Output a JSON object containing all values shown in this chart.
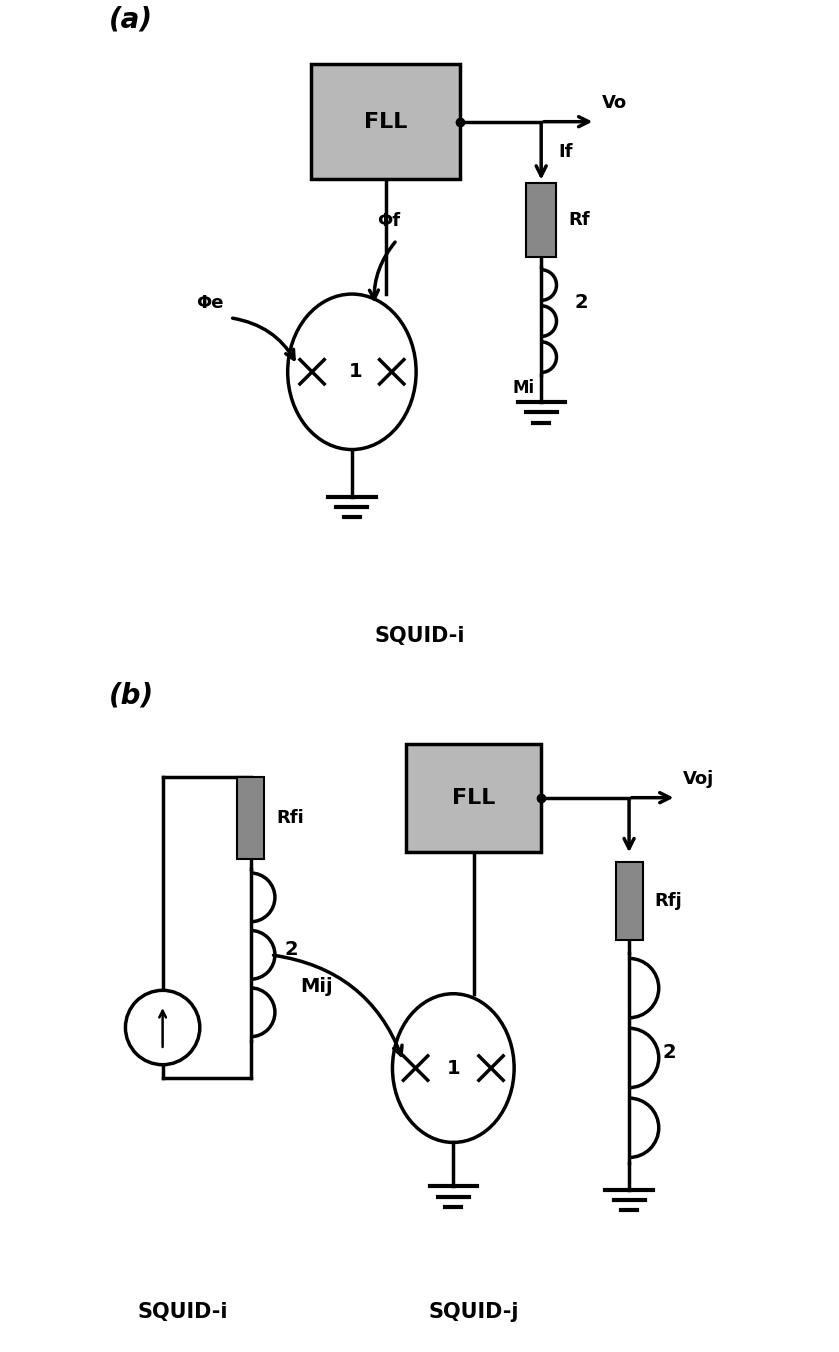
{
  "fig_width": 8.39,
  "fig_height": 13.52,
  "background_color": "#ffffff",
  "label_a": "(a)",
  "label_b": "(b)",
  "squid_i_label_a": "SQUID-i",
  "squid_i_label_b": "SQUID-i",
  "squid_j_label": "SQUID-j",
  "fll_label": "FLL",
  "vo_label": "Vo",
  "if_label": "If",
  "rf_label": "Rf",
  "phi_e_label": "Φe",
  "phi_f_label": "Φf",
  "mi_label": "Mi",
  "voj_label": "Voj",
  "rfi_label": "Rfi",
  "rfj_label": "Rfj",
  "mij_label": "Mij",
  "resistor_color": "#888888",
  "fll_color": "#b8b8b8",
  "line_width": 2.5
}
